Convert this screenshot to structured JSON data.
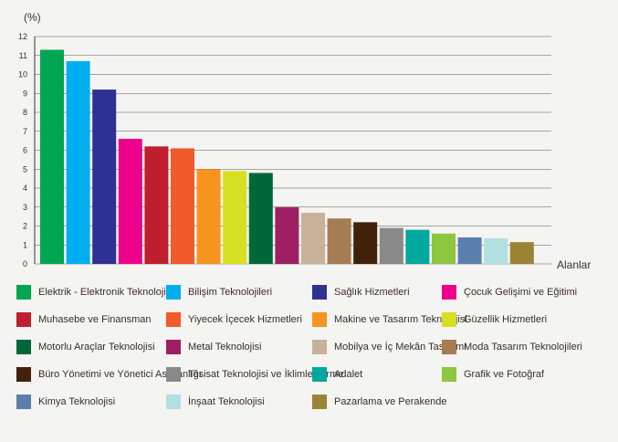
{
  "chart_data": {
    "type": "bar",
    "ylabel": "(%)",
    "xlabel": "Alanlar",
    "ylim": [
      0,
      12
    ],
    "yticks": [
      0,
      1,
      2,
      3,
      4,
      5,
      6,
      7,
      8,
      9,
      10,
      11,
      12
    ],
    "grid": true,
    "legend_position": "bottom",
    "categories": [
      "Elektrik - Elektronik Teknolojisi",
      "Bilişim Teknolojileri",
      "Sağlık Hizmetleri",
      "Çocuk Gelişimi ve Eğitimi",
      "Muhasebe ve Finansman",
      "Yiyecek İçecek Hizmetleri",
      "Makine ve Tasarım Teknolojisi",
      "Güzellik Hizmetleri",
      "Motorlu Araçlar Teknolojisi",
      "Metal Teknolojisi",
      "Mobilya ve İç Mekân Tasarımı",
      "Moda Tasarım Teknolojileri",
      "Büro Yönetimi ve Yönetici Asistanlığı",
      "Tesisat Teknolojisi ve İklimlendirme",
      "Adalet",
      "Grafik ve Fotoğraf",
      "Kimya Teknolojisi",
      "İnşaat Teknolojisi",
      "Pazarlama ve Perakende"
    ],
    "values": [
      11.3,
      10.7,
      9.2,
      6.6,
      6.2,
      6.1,
      5.0,
      4.9,
      4.8,
      3.0,
      2.7,
      2.4,
      2.2,
      1.9,
      1.8,
      1.6,
      1.4,
      1.35,
      1.15
    ],
    "colors": [
      "#00a651",
      "#00aeef",
      "#2e3192",
      "#ec008c",
      "#be1e2d",
      "#f15a29",
      "#f7941d",
      "#d7df23",
      "#006838",
      "#9e1f63",
      "#c7b299",
      "#a67c52",
      "#42210b",
      "#898989",
      "#00a99d",
      "#8dc63f",
      "#5b7fad",
      "#b2e0e0",
      "#9b8435"
    ]
  }
}
